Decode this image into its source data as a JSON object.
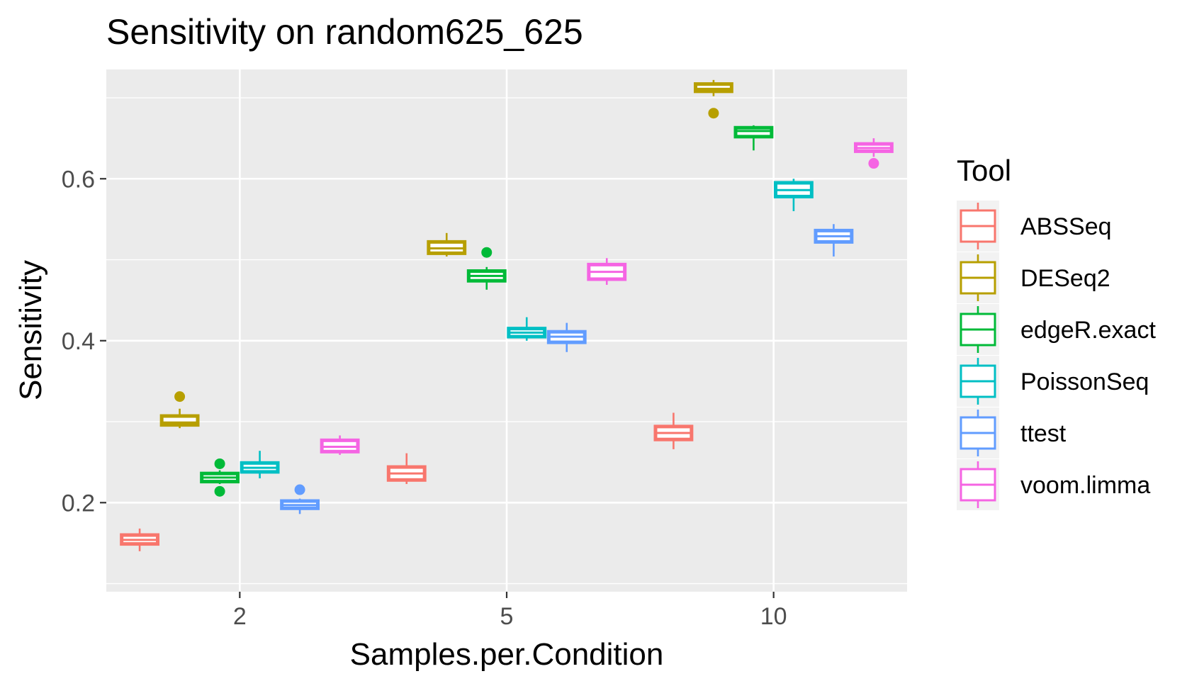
{
  "chart_data": {
    "type": "boxplot",
    "title": "Sensitivity on random625_625",
    "xlabel": "Samples.per.Condition",
    "ylabel": "Sensitivity",
    "categories": [
      "2",
      "5",
      "10"
    ],
    "yticks": [
      0.2,
      0.4,
      0.6
    ],
    "ylim": [
      0.09,
      0.735
    ],
    "grid": true,
    "legend": {
      "title": "Tool",
      "position": "right"
    },
    "series": [
      {
        "name": "ABSSeq",
        "color": "#F8766D",
        "boxes": [
          {
            "category": "2",
            "min": 0.14,
            "q1": 0.149,
            "median": 0.154,
            "q3": 0.16,
            "max": 0.168,
            "outliers": []
          },
          {
            "category": "5",
            "min": 0.223,
            "q1": 0.228,
            "median": 0.236,
            "q3": 0.244,
            "max": 0.261,
            "outliers": []
          },
          {
            "category": "10",
            "min": 0.266,
            "q1": 0.278,
            "median": 0.286,
            "q3": 0.294,
            "max": 0.311,
            "outliers": []
          }
        ]
      },
      {
        "name": "DESeq2",
        "color": "#B79F00",
        "boxes": [
          {
            "category": "2",
            "min": 0.292,
            "q1": 0.296,
            "median": 0.299,
            "q3": 0.307,
            "max": 0.316,
            "outliers": [
              0.331
            ]
          },
          {
            "category": "5",
            "min": 0.504,
            "q1": 0.508,
            "median": 0.514,
            "q3": 0.522,
            "max": 0.533,
            "outliers": []
          },
          {
            "category": "10",
            "min": 0.702,
            "q1": 0.708,
            "median": 0.711,
            "q3": 0.717,
            "max": 0.722,
            "outliers": [
              0.681
            ]
          }
        ]
      },
      {
        "name": "edgeR.exact",
        "color": "#00BA38",
        "boxes": [
          {
            "category": "2",
            "min": 0.223,
            "q1": 0.226,
            "median": 0.231,
            "q3": 0.236,
            "max": 0.24,
            "outliers": [
              0.248,
              0.214
            ]
          },
          {
            "category": "5",
            "min": 0.463,
            "q1": 0.474,
            "median": 0.48,
            "q3": 0.486,
            "max": 0.491,
            "outliers": [
              0.509
            ]
          },
          {
            "category": "10",
            "min": 0.635,
            "q1": 0.652,
            "median": 0.659,
            "q3": 0.663,
            "max": 0.666,
            "outliers": []
          }
        ]
      },
      {
        "name": "PoissonSeq",
        "color": "#00BFC4",
        "boxes": [
          {
            "category": "2",
            "min": 0.23,
            "q1": 0.238,
            "median": 0.243,
            "q3": 0.249,
            "max": 0.264,
            "outliers": []
          },
          {
            "category": "5",
            "min": 0.4,
            "q1": 0.405,
            "median": 0.41,
            "q3": 0.415,
            "max": 0.429,
            "outliers": []
          },
          {
            "category": "10",
            "min": 0.56,
            "q1": 0.578,
            "median": 0.586,
            "q3": 0.595,
            "max": 0.6,
            "outliers": []
          }
        ]
      },
      {
        "name": "ttest",
        "color": "#619CFF",
        "boxes": [
          {
            "category": "2",
            "min": 0.186,
            "q1": 0.193,
            "median": 0.197,
            "q3": 0.202,
            "max": 0.205,
            "outliers": [
              0.216
            ]
          },
          {
            "category": "5",
            "min": 0.386,
            "q1": 0.398,
            "median": 0.405,
            "q3": 0.411,
            "max": 0.422,
            "outliers": []
          },
          {
            "category": "10",
            "min": 0.504,
            "q1": 0.522,
            "median": 0.529,
            "q3": 0.536,
            "max": 0.544,
            "outliers": []
          }
        ]
      },
      {
        "name": "voom.limma",
        "color": "#F564E3",
        "boxes": [
          {
            "category": "2",
            "min": 0.259,
            "q1": 0.263,
            "median": 0.269,
            "q3": 0.277,
            "max": 0.283,
            "outliers": []
          },
          {
            "category": "5",
            "min": 0.469,
            "q1": 0.476,
            "median": 0.485,
            "q3": 0.494,
            "max": 0.502,
            "outliers": []
          },
          {
            "category": "10",
            "min": 0.627,
            "q1": 0.634,
            "median": 0.638,
            "q3": 0.643,
            "max": 0.65,
            "outliers": [
              0.619
            ]
          }
        ]
      }
    ]
  }
}
